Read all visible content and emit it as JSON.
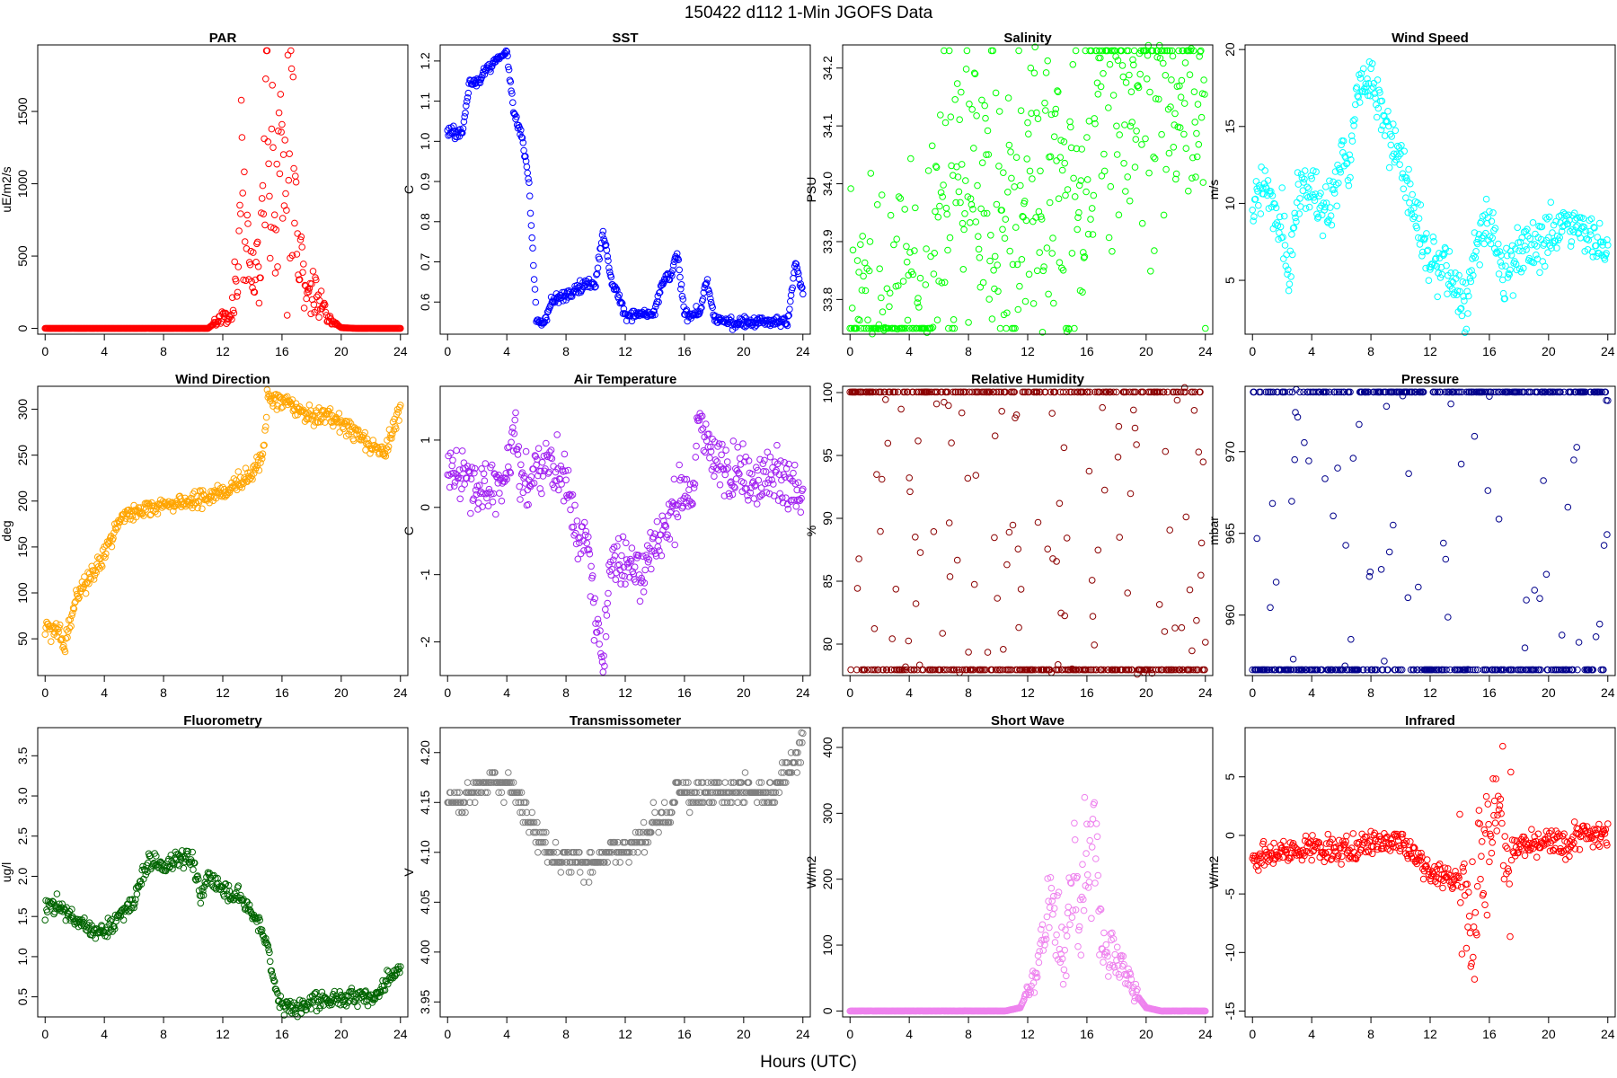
{
  "figure": {
    "title": "150422   d112   1-Min  JGOFS Data",
    "xlabel": "Hours (UTC)"
  },
  "chart_data": [
    {
      "type": "scatter",
      "title": "PAR",
      "ylabel": "uE/m2/s",
      "color": "#ff0000",
      "xlim": [
        -0.5,
        24.5
      ],
      "ylim": [
        -40,
        1960
      ],
      "xticks": [
        0,
        4,
        8,
        12,
        16,
        20,
        24
      ],
      "yticks": [
        0,
        500,
        1000,
        1500
      ],
      "yticklabels": [
        "0",
        "500",
        "1000",
        "1500"
      ],
      "x": [
        0,
        11,
        12,
        12.5,
        13,
        13.3,
        13.6,
        14,
        14.5,
        15,
        15.3,
        15.6,
        16,
        16.3,
        16.6,
        17,
        17.5,
        18,
        18.5,
        19,
        19.5,
        20,
        21,
        24
      ],
      "y": [
        0,
        0,
        80,
        60,
        400,
        1000,
        500,
        350,
        400,
        1400,
        1000,
        800,
        1200,
        700,
        1800,
        500,
        400,
        300,
        200,
        100,
        40,
        5,
        0,
        0
      ],
      "noise": 0.12,
      "spread": 0.5
    },
    {
      "type": "scatter",
      "title": "SST",
      "ylabel": "C",
      "color": "#0000ff",
      "xlim": [
        -0.5,
        24.5
      ],
      "ylim": [
        0.52,
        1.24
      ],
      "xticks": [
        0,
        4,
        8,
        12,
        16,
        20,
        24
      ],
      "yticks": [
        0.6,
        0.7,
        0.8,
        0.9,
        1.0,
        1.1,
        1.2
      ],
      "yticklabels": [
        "0.6",
        "0.7",
        "0.8",
        "0.9",
        "1.0",
        "1.1",
        "1.2"
      ],
      "x": [
        0,
        1,
        1.5,
        2,
        3,
        4,
        4.5,
        5,
        5.5,
        6,
        6.5,
        7,
        8,
        9,
        10,
        10.5,
        11,
        12,
        13,
        14,
        14.5,
        15,
        15.5,
        16,
        16.5,
        17,
        17.5,
        18,
        19,
        20,
        21,
        22,
        23,
        23.5,
        24
      ],
      "y": [
        1.02,
        1.02,
        1.15,
        1.15,
        1.19,
        1.22,
        1.07,
        1.02,
        0.9,
        0.55,
        0.55,
        0.6,
        0.62,
        0.64,
        0.65,
        0.78,
        0.66,
        0.57,
        0.57,
        0.57,
        0.65,
        0.66,
        0.72,
        0.57,
        0.57,
        0.57,
        0.65,
        0.56,
        0.55,
        0.55,
        0.55,
        0.55,
        0.55,
        0.7,
        0.62
      ],
      "noise": 0.01,
      "spread": 0.01
    },
    {
      "type": "scatter",
      "title": "Salinity",
      "ylabel": "PSU",
      "color": "#00ff00",
      "xlim": [
        -0.5,
        24.5
      ],
      "ylim": [
        33.74,
        34.24
      ],
      "xticks": [
        0,
        4,
        8,
        12,
        16,
        20,
        24
      ],
      "yticks": [
        33.8,
        33.9,
        34.0,
        34.1,
        34.2
      ],
      "yticklabels": [
        "33.8",
        "33.9",
        "34.0",
        "34.1",
        "34.2"
      ],
      "x": [
        0,
        2,
        4,
        5,
        5.5,
        6,
        7,
        8,
        9,
        9.5,
        10,
        10.3,
        10.6,
        11,
        12,
        13,
        14,
        15,
        15.2,
        15.5,
        16,
        16.5,
        17,
        18,
        18.5,
        19,
        20,
        21,
        22,
        23,
        24
      ],
      "y": [
        33.76,
        33.76,
        33.76,
        33.76,
        33.77,
        33.97,
        33.98,
        33.99,
        33.98,
        33.96,
        34.0,
        33.85,
        33.89,
        33.89,
        33.98,
        33.99,
        34.0,
        33.99,
        33.9,
        33.92,
        34.12,
        34.19,
        34.2,
        34.18,
        34.16,
        34.2,
        34.2,
        34.21,
        34.21,
        34.2,
        34.1
      ],
      "noise": 0.004,
      "spread": 0.005
    },
    {
      "type": "scatter",
      "title": "Wind Speed",
      "ylabel": "m/s",
      "color": "#00ffff",
      "xlim": [
        -0.5,
        24.5
      ],
      "ylim": [
        1.5,
        20.3
      ],
      "xticks": [
        0,
        4,
        8,
        12,
        16,
        20,
        24
      ],
      "yticks": [
        5,
        10,
        15,
        20
      ],
      "yticklabels": [
        "5",
        "10",
        "15",
        "20"
      ],
      "x": [
        0,
        1,
        2,
        2.5,
        3,
        4,
        5,
        6,
        6.5,
        7,
        8,
        9,
        10,
        11,
        12,
        13,
        13.5,
        14,
        14.5,
        15,
        16,
        17,
        18,
        19,
        20,
        21,
        22,
        23,
        24
      ],
      "y": [
        10,
        11,
        9,
        5,
        11,
        11,
        9,
        13,
        12,
        17,
        18,
        15,
        13,
        9,
        6,
        6,
        5,
        4,
        3,
        7,
        9,
        5,
        7,
        7,
        8,
        9,
        8,
        8,
        7
      ],
      "noise": 1.2,
      "spread": 0.6
    },
    {
      "type": "scatter",
      "title": "Wind Direction",
      "ylabel": "deg",
      "color": "#ffa500",
      "xlim": [
        -0.5,
        24.5
      ],
      "ylim": [
        10,
        325
      ],
      "xticks": [
        0,
        4,
        8,
        12,
        16,
        20,
        24
      ],
      "yticks": [
        50,
        100,
        150,
        200,
        250,
        300
      ],
      "yticklabels": [
        "50",
        "100",
        "150",
        "200",
        "250",
        "300"
      ],
      "x": [
        0,
        1,
        1.3,
        2,
        3,
        4,
        5,
        6,
        8,
        10,
        12,
        14,
        14.8,
        15,
        16,
        17,
        18,
        19,
        20,
        21,
        22,
        23,
        24
      ],
      "y": [
        60,
        60,
        35,
        90,
        120,
        140,
        180,
        190,
        195,
        200,
        210,
        230,
        255,
        310,
        310,
        300,
        290,
        295,
        285,
        275,
        260,
        255,
        300
      ],
      "noise": 7,
      "spread": 0.05
    },
    {
      "type": "scatter",
      "title": "Air Temperature",
      "ylabel": "C",
      "color": "#a020f0",
      "xlim": [
        -0.5,
        24.5
      ],
      "ylim": [
        -2.5,
        1.8
      ],
      "xticks": [
        0,
        4,
        8,
        12,
        16,
        20,
        24
      ],
      "yticks": [
        -2,
        -1,
        0,
        1
      ],
      "yticklabels": [
        "-2",
        "-1",
        "0",
        "1"
      ],
      "x": [
        0,
        1,
        2,
        3,
        4,
        4.5,
        5,
        6,
        7,
        8,
        9,
        9.5,
        10,
        10.5,
        11,
        12,
        13,
        14,
        15,
        16,
        16.5,
        17,
        18,
        19,
        20,
        21,
        22,
        23,
        24
      ],
      "y": [
        0.5,
        0.6,
        0.3,
        0.3,
        0.5,
        1.2,
        0.3,
        0.5,
        0.7,
        0.4,
        -0.5,
        -0.6,
        -1.8,
        -2.1,
        -0.8,
        -0.8,
        -0.9,
        -0.5,
        -0.2,
        0.3,
        0.0,
        1.4,
        0.6,
        0.6,
        0.5,
        0.4,
        0.6,
        0.3,
        0.1
      ],
      "noise": 0.3,
      "spread": 0.05
    },
    {
      "type": "scatter",
      "title": "Relative Humidity",
      "ylabel": "%",
      "color": "#8b0000",
      "xlim": [
        -0.5,
        24.5
      ],
      "ylim": [
        77.5,
        100.5
      ],
      "xticks": [
        0,
        4,
        8,
        12,
        16,
        20,
        24
      ],
      "yticks": [
        80,
        85,
        90,
        95,
        100
      ],
      "yticklabels": [
        "80",
        "85",
        "90",
        "95",
        "100"
      ],
      "x": [
        0,
        1,
        2,
        3,
        4,
        5,
        6,
        7,
        8,
        9,
        10,
        11,
        11.5,
        12,
        13,
        14,
        15,
        15.5,
        16,
        16.5,
        17,
        18,
        19,
        20,
        21,
        22,
        23,
        24
      ],
      "y": [
        99,
        99,
        98,
        97,
        96,
        95,
        94,
        93,
        89,
        90,
        88,
        83,
        80,
        80,
        81,
        80,
        80,
        85,
        84,
        82,
        80,
        84,
        87,
        88,
        83,
        86,
        82,
        78
      ],
      "noise": 0.7,
      "spread": 0.05
    },
    {
      "type": "scatter",
      "title": "Pressure",
      "ylabel": "mbar",
      "color": "#00008b",
      "xlim": [
        -0.5,
        24.5
      ],
      "ylim": [
        956.3,
        974.0
      ],
      "xticks": [
        0,
        4,
        8,
        12,
        16,
        20,
        24
      ],
      "yticks": [
        960,
        965,
        970
      ],
      "yticklabels": [
        "960",
        "965",
        "970"
      ],
      "x": [
        0,
        1,
        2,
        2.8,
        3.5,
        4,
        5,
        6,
        7,
        8,
        9,
        10,
        11,
        12,
        13,
        14,
        15,
        16,
        17,
        18,
        19,
        20,
        21,
        22,
        23,
        24
      ],
      "y": [
        959.8,
        958.5,
        957.5,
        957.2,
        957.8,
        958.5,
        960.5,
        962.5,
        964.7,
        967.0,
        969.5,
        971.3,
        972.1,
        972.8,
        973.3,
        973.6,
        973.7,
        973.6,
        973.4,
        973.2,
        973.0,
        972.9,
        972.7,
        972.5,
        972.3,
        972.1
      ],
      "noise": 0.08,
      "spread": 0.0
    },
    {
      "type": "scatter",
      "title": "Fluorometry",
      "ylabel": "ug/l",
      "color": "#006400",
      "xlim": [
        -0.5,
        24.5
      ],
      "ylim": [
        0.25,
        3.85
      ],
      "xticks": [
        0,
        4,
        8,
        12,
        16,
        20,
        24
      ],
      "yticks": [
        0.5,
        1.0,
        1.5,
        2.0,
        2.5,
        3.0,
        3.5
      ],
      "yticklabels": [
        "0.5",
        "1.0",
        "1.5",
        "2.0",
        "2.5",
        "3.0",
        "3.5"
      ],
      "x": [
        0,
        1,
        2,
        3,
        4,
        5,
        6,
        7,
        8,
        9,
        10,
        10.5,
        11,
        12,
        13,
        14,
        15,
        15.5,
        16,
        17,
        18,
        19,
        20,
        21,
        22,
        22.5,
        23,
        24
      ],
      "y": [
        1.6,
        1.65,
        1.45,
        1.35,
        1.3,
        1.5,
        1.7,
        2.2,
        2.1,
        2.25,
        2.2,
        1.7,
        2.0,
        1.85,
        1.75,
        1.55,
        1.2,
        0.6,
        0.4,
        0.35,
        0.45,
        0.45,
        0.48,
        0.5,
        0.5,
        0.52,
        0.7,
        0.85
      ],
      "noise": 0.08,
      "spread": 0.05
    },
    {
      "type": "scatter",
      "title": "Transmissometer",
      "ylabel": "V",
      "color": "#808080",
      "xlim": [
        -0.5,
        24.5
      ],
      "ylim": [
        3.935,
        4.225
      ],
      "xticks": [
        0,
        4,
        8,
        12,
        16,
        20,
        24
      ],
      "yticks": [
        3.95,
        4.0,
        4.05,
        4.1,
        4.15,
        4.2
      ],
      "yticklabels": [
        "3.95",
        "4.00",
        "4.05",
        "4.10",
        "4.15",
        "4.20"
      ],
      "x": [
        0,
        1,
        2,
        3,
        4,
        5,
        6,
        7,
        8,
        9,
        10,
        11,
        12,
        13,
        14,
        15,
        15.5,
        16,
        17,
        18,
        19,
        20,
        21,
        22,
        23,
        24
      ],
      "y": [
        4.15,
        4.15,
        4.17,
        4.17,
        4.17,
        4.15,
        4.12,
        4.1,
        4.09,
        4.09,
        4.09,
        4.1,
        4.1,
        4.11,
        4.13,
        4.13,
        4.17,
        4.16,
        4.16,
        4.16,
        4.16,
        4.16,
        4.16,
        4.16,
        4.18,
        4.21
      ],
      "noise": 0.01,
      "spread": 0.01,
      "quantize": 0.01
    },
    {
      "type": "scatter",
      "title": "Short Wave",
      "ylabel": "W/m2",
      "color": "#ee82ee",
      "xlim": [
        -0.5,
        24.5
      ],
      "ylim": [
        -9,
        430
      ],
      "xticks": [
        0,
        4,
        8,
        12,
        16,
        20,
        24
      ],
      "yticks": [
        0,
        100,
        200,
        300,
        400
      ],
      "yticklabels": [
        "0",
        "100",
        "200",
        "300",
        "400"
      ],
      "x": [
        0,
        10.5,
        11.5,
        12,
        12.5,
        13,
        13.5,
        14,
        14.5,
        15,
        15.5,
        16,
        16.5,
        17,
        17.5,
        18,
        18.5,
        19,
        19.5,
        20,
        21,
        24
      ],
      "y": [
        0,
        0,
        5,
        30,
        50,
        100,
        170,
        120,
        80,
        200,
        150,
        220,
        260,
        100,
        90,
        80,
        60,
        50,
        20,
        5,
        0,
        0
      ],
      "noise": 0.12,
      "spread": 0.35
    },
    {
      "type": "scatter",
      "title": "Infrared",
      "ylabel": "W/m2",
      "color": "#ff0000",
      "xlim": [
        -0.5,
        24.5
      ],
      "ylim": [
        -15.5,
        9.2
      ],
      "xticks": [
        0,
        4,
        8,
        12,
        16,
        20,
        24
      ],
      "yticks": [
        -15,
        -10,
        -5,
        0,
        5
      ],
      "yticklabels": [
        "-15",
        "-10",
        "-5",
        "0",
        "5"
      ],
      "x": [
        0,
        2,
        4,
        6,
        8,
        10,
        12,
        13,
        14,
        15,
        15.5,
        16,
        16.5,
        17,
        18,
        19,
        20,
        21,
        22,
        23,
        24
      ],
      "y": [
        -2,
        -1.5,
        -1,
        -1.5,
        -0.5,
        -0.5,
        -3,
        -3.5,
        -4,
        -5,
        -1,
        2,
        3,
        -1,
        -1,
        -1,
        -0.5,
        -1,
        0,
        0,
        0
      ],
      "noise": 0.8,
      "spread": 0.15,
      "burst": [
        14,
        17.5,
        4.5
      ]
    }
  ]
}
